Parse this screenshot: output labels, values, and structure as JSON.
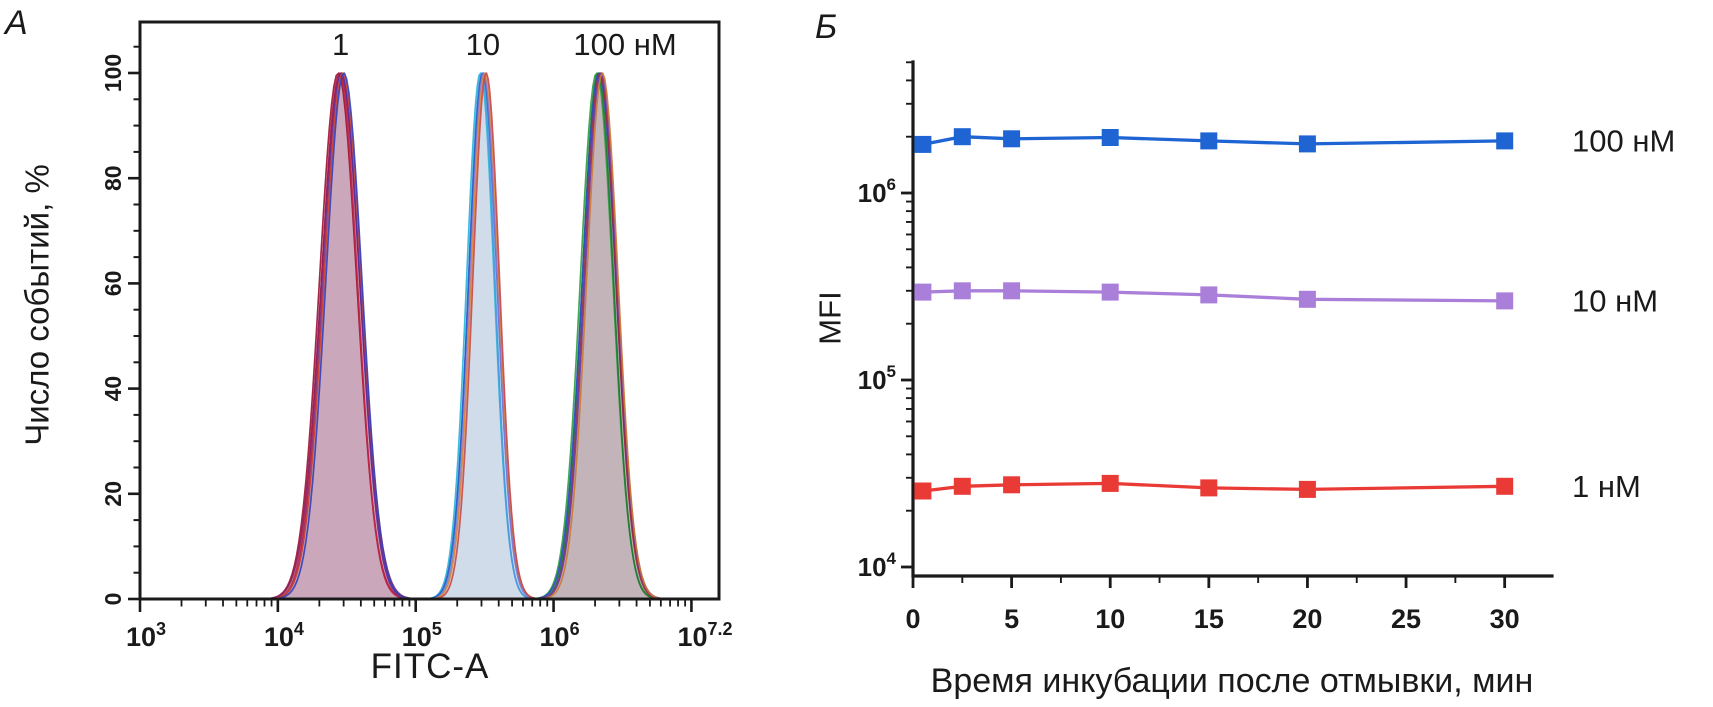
{
  "figure": {
    "panel_a_label": "А",
    "panel_b_label": "Б"
  },
  "colors": {
    "axis": "#1a1a1a",
    "text": "#1a1a1a"
  },
  "chart_data": [
    {
      "panel": "А",
      "type": "area",
      "subtype": "flow-cytometry-histogram-overlay",
      "xlabel": "FITC-A",
      "ylabel": "Число событий, %",
      "x_scale": "log10",
      "xlim_log10": [
        3,
        7.2
      ],
      "x_tick_decades": [
        3,
        4,
        5,
        6,
        7
      ],
      "x_decade_labels": [
        3,
        4,
        5,
        6
      ],
      "x_last_tick_label": {
        "base": "10",
        "sup": "7.2"
      },
      "ylim": [
        0,
        100
      ],
      "y_major_ticks": [
        0,
        20,
        40,
        60,
        80,
        100
      ],
      "y_minor_step": 5,
      "grid": false,
      "peaks": [
        {
          "annotation": "1",
          "center": 28500,
          "center_log10": 4.455,
          "sigma_log10": 0.135,
          "height_pct": 100,
          "fill": "#c49db3",
          "trace_colors": [
            "#9e1030",
            "#c22445",
            "#8c1f60",
            "#5a2d9e",
            "#d2452e",
            "#3340bb"
          ]
        },
        {
          "annotation": "10",
          "center": 307000,
          "center_log10": 5.487,
          "sigma_log10": 0.1,
          "height_pct": 100,
          "fill": "#ccd8e8",
          "trace_colors": [
            "#29b5da",
            "#4e96e0",
            "#2f57c9",
            "#8a7ad2",
            "#de8a3e",
            "#c74a4a"
          ]
        },
        {
          "annotation": "100 нМ",
          "center": 2140000,
          "center_log10": 6.33,
          "sigma_log10": 0.118,
          "height_pct": 100,
          "fill": "#bcacb2",
          "trace_colors": [
            "#2f9e3f",
            "#1e7a30",
            "#2b4ec5",
            "#a02441",
            "#7040a8",
            "#cc7a33"
          ]
        }
      ]
    },
    {
      "panel": "Б",
      "type": "line",
      "xlabel": "Время инкубации после отмывки, мин",
      "ylabel": "MFI",
      "x": [
        0.5,
        2.5,
        5,
        10,
        15,
        20,
        30
      ],
      "series": [
        {
          "name": "100 нМ",
          "color": "#1e64d2",
          "values": [
            1820000,
            2000000,
            1950000,
            1980000,
            1900000,
            1830000,
            1900000
          ]
        },
        {
          "name": "10 нМ",
          "color": "#aa7fd9",
          "values": [
            295000,
            300000,
            300000,
            295000,
            285000,
            270000,
            265000
          ]
        },
        {
          "name": "1 нМ",
          "color": "#ea3a36",
          "values": [
            25500,
            27000,
            27500,
            28000,
            26500,
            26000,
            27000
          ]
        }
      ],
      "x_major_ticks": [
        0,
        5,
        10,
        15,
        20,
        25,
        30
      ],
      "x_minor_ticks": [
        2.5,
        7.5,
        12.5,
        17.5,
        22.5,
        27.5
      ],
      "xlim": [
        0,
        32.4
      ],
      "y_scale": "log10",
      "y_major_ticks_log10": [
        4,
        5,
        6
      ],
      "ylim_log10": [
        3.95,
        6.75
      ],
      "marker": "square",
      "grid": false,
      "legend_position": "right-of-lines"
    }
  ]
}
